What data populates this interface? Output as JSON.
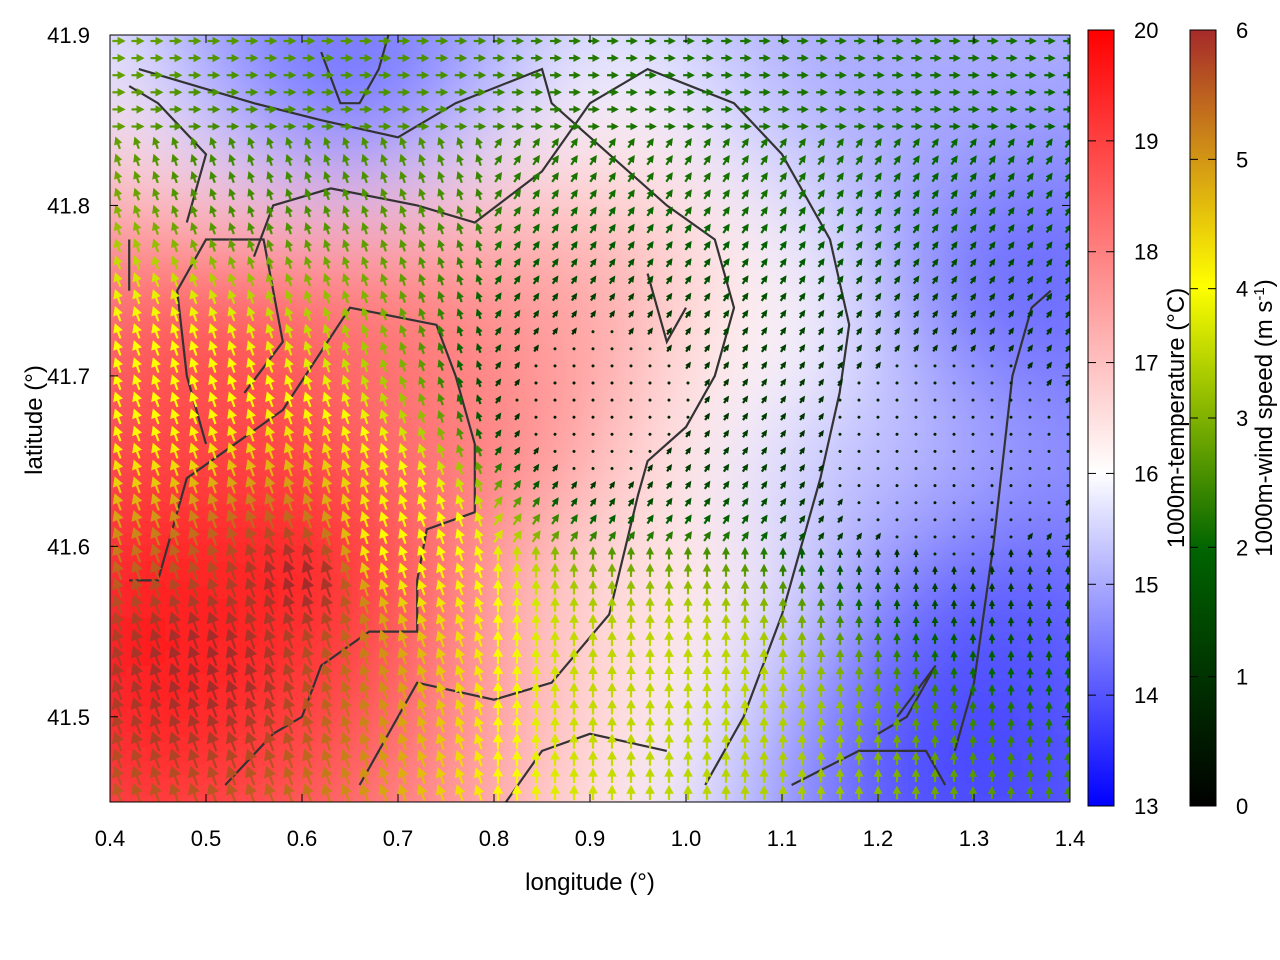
{
  "chart_data": {
    "type": "heatmap",
    "xlabel": "longitude (°)",
    "ylabel": "latitude (°)",
    "xlim": [
      0.4,
      1.4
    ],
    "ylim": [
      41.45,
      41.9
    ],
    "x_ticks": [
      "0.4",
      "0.5",
      "0.6",
      "0.7",
      "0.8",
      "0.9",
      "1.0",
      "1.1",
      "1.2",
      "1.3",
      "1.4"
    ],
    "y_ticks": [
      "41.5",
      "41.6",
      "41.7",
      "41.8",
      "41.9"
    ],
    "temperature_colorbar": {
      "label": "1000m-temperature (°C)",
      "range": [
        13,
        20
      ],
      "ticks": [
        "13",
        "14",
        "15",
        "16",
        "17",
        "18",
        "19",
        "20"
      ],
      "colors": [
        "#0000ff",
        "#ffffff",
        "#ff0000"
      ]
    },
    "wind_colorbar": {
      "label_main": "1000m-wind speed (m s",
      "label_sup": "-1",
      "label_end": ")",
      "range": [
        0,
        6
      ],
      "ticks": [
        "0",
        "1",
        "2",
        "3",
        "4",
        "5",
        "6"
      ],
      "colors": [
        "#000000",
        "#006400",
        "#ffff00",
        "#a52a2a"
      ]
    },
    "temperature_field": {
      "description_units": "°C",
      "regions": [
        {
          "lon": 0.45,
          "lat": 41.55,
          "value": 19.6
        },
        {
          "lon": 0.6,
          "lat": 41.6,
          "value": 19.5
        },
        {
          "lon": 0.55,
          "lat": 41.7,
          "value": 18.8
        },
        {
          "lon": 0.7,
          "lat": 41.72,
          "value": 18.2
        },
        {
          "lon": 0.8,
          "lat": 41.65,
          "value": 18.0
        },
        {
          "lon": 0.9,
          "lat": 41.72,
          "value": 17.5
        },
        {
          "lon": 0.95,
          "lat": 41.6,
          "value": 16.5
        },
        {
          "lon": 1.05,
          "lat": 41.7,
          "value": 16.2
        },
        {
          "lon": 1.15,
          "lat": 41.65,
          "value": 15.2
        },
        {
          "lon": 1.3,
          "lat": 41.55,
          "value": 14.0
        },
        {
          "lon": 1.35,
          "lat": 41.75,
          "value": 14.2
        },
        {
          "lon": 0.65,
          "lat": 41.87,
          "value": 14.3
        },
        {
          "lon": 1.2,
          "lat": 41.88,
          "value": 15.0
        },
        {
          "lon": 1.3,
          "lat": 41.48,
          "value": 13.8
        }
      ]
    },
    "wind_speed_field": {
      "regions": [
        {
          "lon": 0.5,
          "lat": 41.53,
          "value": 6.0
        },
        {
          "lon": 0.6,
          "lat": 41.58,
          "value": 6.0
        },
        {
          "lon": 0.45,
          "lat": 41.7,
          "value": 4.0
        },
        {
          "lon": 0.7,
          "lat": 41.6,
          "value": 4.0
        },
        {
          "lon": 0.55,
          "lat": 41.82,
          "value": 2.5
        },
        {
          "lon": 1.0,
          "lat": 41.52,
          "value": 3.5
        },
        {
          "lon": 1.05,
          "lat": 41.85,
          "value": 2.2
        },
        {
          "lon": 0.9,
          "lat": 41.68,
          "value": 0.5
        },
        {
          "lon": 1.25,
          "lat": 41.65,
          "value": 0.6
        }
      ]
    }
  }
}
